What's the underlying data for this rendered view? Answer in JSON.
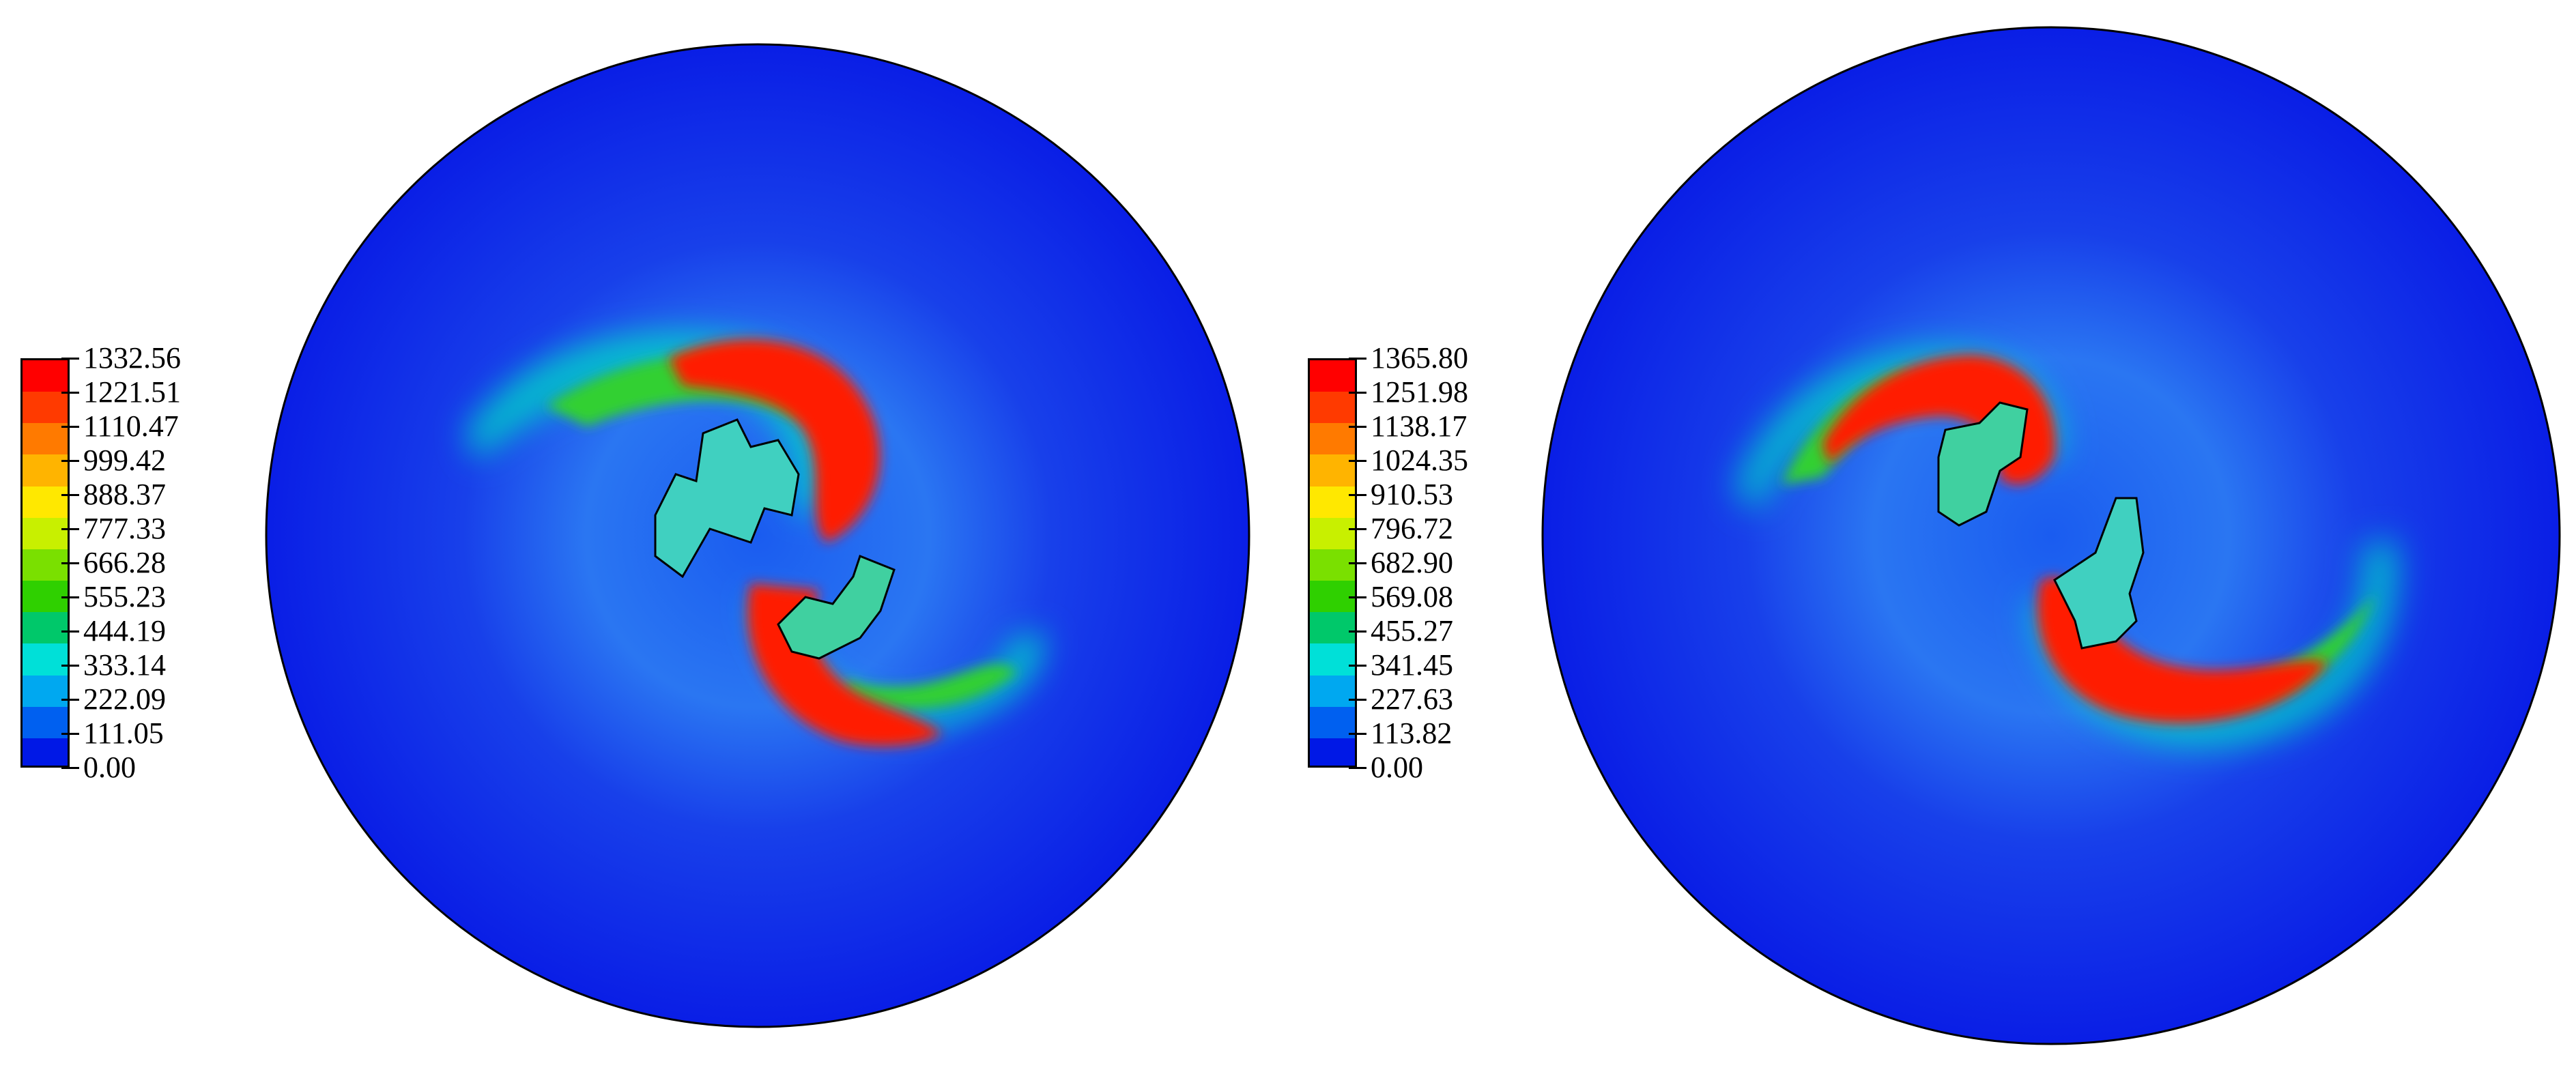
{
  "panels": [
    {
      "id": "left",
      "legend": {
        "labels": [
          "1332.56",
          "1221.51",
          "1110.47",
          "999.42",
          "888.37",
          "777.33",
          "666.28",
          "555.23",
          "444.19",
          "333.14",
          "222.09",
          "111.05",
          "0.00"
        ]
      }
    },
    {
      "id": "right",
      "legend": {
        "labels": [
          "1365.80",
          "1251.98",
          "1138.17",
          "1024.35",
          "910.53",
          "796.72",
          "682.90",
          "569.08",
          "455.27",
          "341.45",
          "227.63",
          "113.82",
          "0.00"
        ]
      }
    }
  ],
  "colors": {
    "colormap": [
      "#ff0000",
      "#ff3a00",
      "#ff7a00",
      "#ffb400",
      "#ffe800",
      "#c8f000",
      "#7ae000",
      "#2fd000",
      "#00c86a",
      "#00e0d8",
      "#00a8f0",
      "#0060f0",
      "#0018e6"
    ],
    "background": "#ffffff",
    "outline": "#000000"
  }
}
